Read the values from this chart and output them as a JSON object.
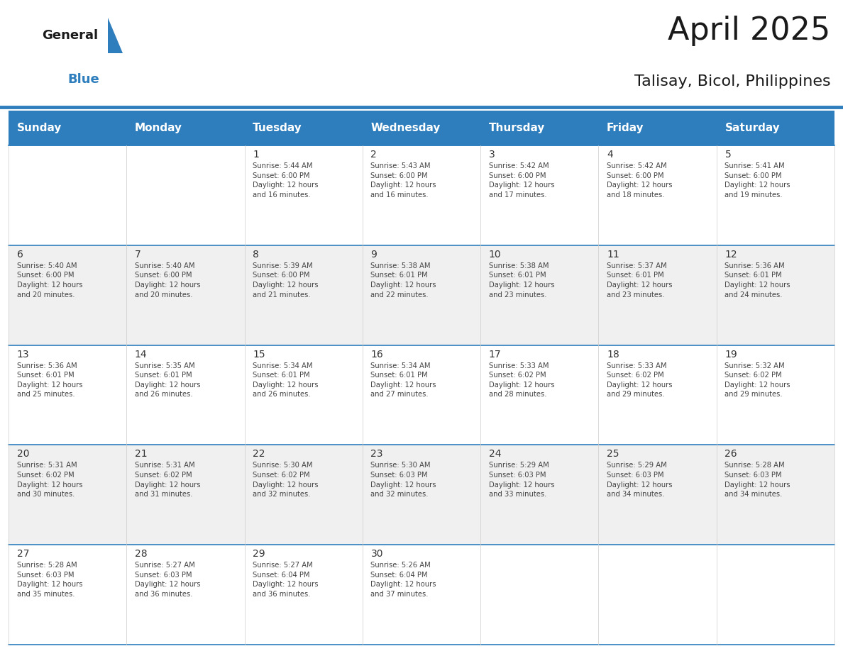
{
  "title": "April 2025",
  "subtitle": "Talisay, Bicol, Philippines",
  "header_bg": "#2E7EBD",
  "header_text_color": "#FFFFFF",
  "cell_bg_white": "#FFFFFF",
  "cell_bg_gray": "#F0F0F0",
  "grid_line_color": "#2E7EBD",
  "text_color": "#444444",
  "day_num_color": "#333333",
  "days_of_week": [
    "Sunday",
    "Monday",
    "Tuesday",
    "Wednesday",
    "Thursday",
    "Friday",
    "Saturday"
  ],
  "calendar_data": [
    [
      {
        "day": "",
        "info": ""
      },
      {
        "day": "",
        "info": ""
      },
      {
        "day": "1",
        "info": "Sunrise: 5:44 AM\nSunset: 6:00 PM\nDaylight: 12 hours\nand 16 minutes."
      },
      {
        "day": "2",
        "info": "Sunrise: 5:43 AM\nSunset: 6:00 PM\nDaylight: 12 hours\nand 16 minutes."
      },
      {
        "day": "3",
        "info": "Sunrise: 5:42 AM\nSunset: 6:00 PM\nDaylight: 12 hours\nand 17 minutes."
      },
      {
        "day": "4",
        "info": "Sunrise: 5:42 AM\nSunset: 6:00 PM\nDaylight: 12 hours\nand 18 minutes."
      },
      {
        "day": "5",
        "info": "Sunrise: 5:41 AM\nSunset: 6:00 PM\nDaylight: 12 hours\nand 19 minutes."
      }
    ],
    [
      {
        "day": "6",
        "info": "Sunrise: 5:40 AM\nSunset: 6:00 PM\nDaylight: 12 hours\nand 20 minutes."
      },
      {
        "day": "7",
        "info": "Sunrise: 5:40 AM\nSunset: 6:00 PM\nDaylight: 12 hours\nand 20 minutes."
      },
      {
        "day": "8",
        "info": "Sunrise: 5:39 AM\nSunset: 6:00 PM\nDaylight: 12 hours\nand 21 minutes."
      },
      {
        "day": "9",
        "info": "Sunrise: 5:38 AM\nSunset: 6:01 PM\nDaylight: 12 hours\nand 22 minutes."
      },
      {
        "day": "10",
        "info": "Sunrise: 5:38 AM\nSunset: 6:01 PM\nDaylight: 12 hours\nand 23 minutes."
      },
      {
        "day": "11",
        "info": "Sunrise: 5:37 AM\nSunset: 6:01 PM\nDaylight: 12 hours\nand 23 minutes."
      },
      {
        "day": "12",
        "info": "Sunrise: 5:36 AM\nSunset: 6:01 PM\nDaylight: 12 hours\nand 24 minutes."
      }
    ],
    [
      {
        "day": "13",
        "info": "Sunrise: 5:36 AM\nSunset: 6:01 PM\nDaylight: 12 hours\nand 25 minutes."
      },
      {
        "day": "14",
        "info": "Sunrise: 5:35 AM\nSunset: 6:01 PM\nDaylight: 12 hours\nand 26 minutes."
      },
      {
        "day": "15",
        "info": "Sunrise: 5:34 AM\nSunset: 6:01 PM\nDaylight: 12 hours\nand 26 minutes."
      },
      {
        "day": "16",
        "info": "Sunrise: 5:34 AM\nSunset: 6:01 PM\nDaylight: 12 hours\nand 27 minutes."
      },
      {
        "day": "17",
        "info": "Sunrise: 5:33 AM\nSunset: 6:02 PM\nDaylight: 12 hours\nand 28 minutes."
      },
      {
        "day": "18",
        "info": "Sunrise: 5:33 AM\nSunset: 6:02 PM\nDaylight: 12 hours\nand 29 minutes."
      },
      {
        "day": "19",
        "info": "Sunrise: 5:32 AM\nSunset: 6:02 PM\nDaylight: 12 hours\nand 29 minutes."
      }
    ],
    [
      {
        "day": "20",
        "info": "Sunrise: 5:31 AM\nSunset: 6:02 PM\nDaylight: 12 hours\nand 30 minutes."
      },
      {
        "day": "21",
        "info": "Sunrise: 5:31 AM\nSunset: 6:02 PM\nDaylight: 12 hours\nand 31 minutes."
      },
      {
        "day": "22",
        "info": "Sunrise: 5:30 AM\nSunset: 6:02 PM\nDaylight: 12 hours\nand 32 minutes."
      },
      {
        "day": "23",
        "info": "Sunrise: 5:30 AM\nSunset: 6:03 PM\nDaylight: 12 hours\nand 32 minutes."
      },
      {
        "day": "24",
        "info": "Sunrise: 5:29 AM\nSunset: 6:03 PM\nDaylight: 12 hours\nand 33 minutes."
      },
      {
        "day": "25",
        "info": "Sunrise: 5:29 AM\nSunset: 6:03 PM\nDaylight: 12 hours\nand 34 minutes."
      },
      {
        "day": "26",
        "info": "Sunrise: 5:28 AM\nSunset: 6:03 PM\nDaylight: 12 hours\nand 34 minutes."
      }
    ],
    [
      {
        "day": "27",
        "info": "Sunrise: 5:28 AM\nSunset: 6:03 PM\nDaylight: 12 hours\nand 35 minutes."
      },
      {
        "day": "28",
        "info": "Sunrise: 5:27 AM\nSunset: 6:03 PM\nDaylight: 12 hours\nand 36 minutes."
      },
      {
        "day": "29",
        "info": "Sunrise: 5:27 AM\nSunset: 6:04 PM\nDaylight: 12 hours\nand 36 minutes."
      },
      {
        "day": "30",
        "info": "Sunrise: 5:26 AM\nSunset: 6:04 PM\nDaylight: 12 hours\nand 37 minutes."
      },
      {
        "day": "",
        "info": ""
      },
      {
        "day": "",
        "info": ""
      },
      {
        "day": "",
        "info": ""
      }
    ]
  ],
  "logo_color_general": "#1a1a1a",
  "logo_color_blue": "#2E7EBD",
  "logo_triangle_color": "#2E7EBD",
  "title_color": "#1a1a1a",
  "subtitle_color": "#1a1a1a"
}
